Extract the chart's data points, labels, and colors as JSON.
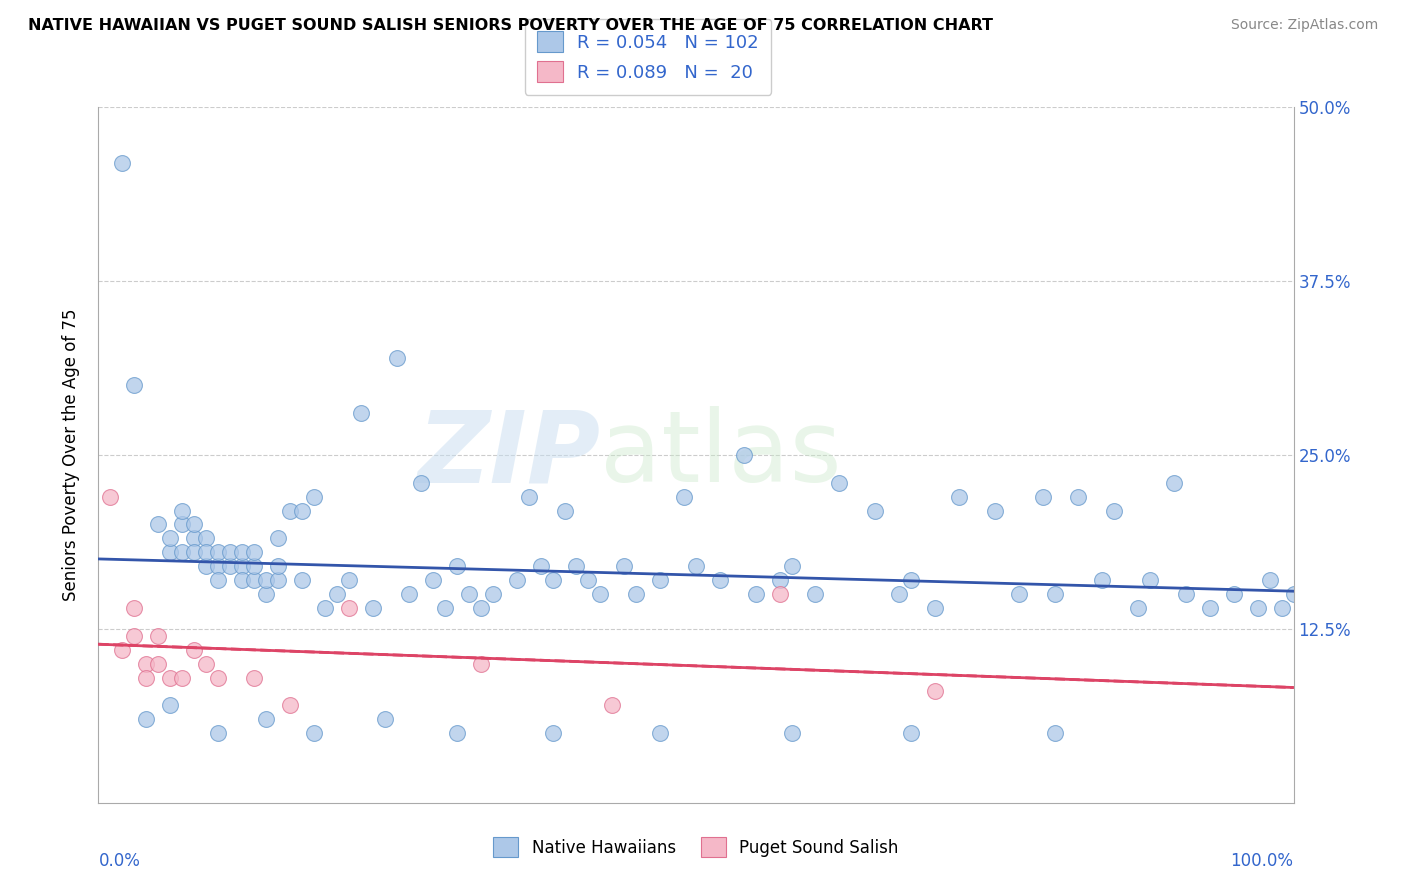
{
  "title": "NATIVE HAWAIIAN VS PUGET SOUND SALISH SENIORS POVERTY OVER THE AGE OF 75 CORRELATION CHART",
  "source": "Source: ZipAtlas.com",
  "ylabel": "Seniors Poverty Over the Age of 75",
  "ytick_vals": [
    0.0,
    0.125,
    0.25,
    0.375,
    0.5
  ],
  "ytick_labels": [
    "",
    "12.5%",
    "25.0%",
    "37.5%",
    "50.0%"
  ],
  "xtick_labels": [
    "0.0%",
    "100.0%"
  ],
  "series1_color": "#adc8e8",
  "series1_edge": "#6699cc",
  "series2_color": "#f5b8c8",
  "series2_edge": "#e07090",
  "line1_color": "#3355aa",
  "line2_color": "#dd4466",
  "tick_color": "#3366cc",
  "watermark_zip": "ZIP",
  "watermark_atlas": "atlas",
  "legend_r1": "R = 0.054",
  "legend_n1": "N = 102",
  "legend_r2": "R = 0.089",
  "legend_n2": "N =  20",
  "series1_label": "Native Hawaiians",
  "series2_label": "Puget Sound Salish",
  "nh_x": [
    0.02,
    0.03,
    0.05,
    0.06,
    0.06,
    0.07,
    0.07,
    0.07,
    0.08,
    0.08,
    0.08,
    0.09,
    0.09,
    0.09,
    0.1,
    0.1,
    0.1,
    0.11,
    0.11,
    0.12,
    0.12,
    0.12,
    0.13,
    0.13,
    0.13,
    0.14,
    0.14,
    0.15,
    0.15,
    0.15,
    0.16,
    0.17,
    0.17,
    0.18,
    0.19,
    0.2,
    0.21,
    0.22,
    0.23,
    0.25,
    0.26,
    0.27,
    0.28,
    0.29,
    0.3,
    0.31,
    0.32,
    0.33,
    0.35,
    0.36,
    0.37,
    0.38,
    0.39,
    0.4,
    0.41,
    0.42,
    0.44,
    0.45,
    0.47,
    0.49,
    0.5,
    0.52,
    0.54,
    0.55,
    0.57,
    0.58,
    0.6,
    0.62,
    0.65,
    0.67,
    0.68,
    0.7,
    0.72,
    0.75,
    0.77,
    0.79,
    0.8,
    0.82,
    0.84,
    0.85,
    0.87,
    0.88,
    0.9,
    0.91,
    0.93,
    0.95,
    0.97,
    0.98,
    0.99,
    1.0,
    0.04,
    0.06,
    0.1,
    0.14,
    0.18,
    0.24,
    0.3,
    0.38,
    0.47,
    0.58,
    0.68,
    0.8
  ],
  "nh_y": [
    0.46,
    0.3,
    0.2,
    0.18,
    0.19,
    0.18,
    0.2,
    0.21,
    0.19,
    0.18,
    0.2,
    0.17,
    0.19,
    0.18,
    0.17,
    0.18,
    0.16,
    0.17,
    0.18,
    0.17,
    0.18,
    0.16,
    0.16,
    0.17,
    0.18,
    0.15,
    0.16,
    0.16,
    0.17,
    0.19,
    0.21,
    0.16,
    0.21,
    0.22,
    0.14,
    0.15,
    0.16,
    0.28,
    0.14,
    0.32,
    0.15,
    0.23,
    0.16,
    0.14,
    0.17,
    0.15,
    0.14,
    0.15,
    0.16,
    0.22,
    0.17,
    0.16,
    0.21,
    0.17,
    0.16,
    0.15,
    0.17,
    0.15,
    0.16,
    0.22,
    0.17,
    0.16,
    0.25,
    0.15,
    0.16,
    0.17,
    0.15,
    0.23,
    0.21,
    0.15,
    0.16,
    0.14,
    0.22,
    0.21,
    0.15,
    0.22,
    0.15,
    0.22,
    0.16,
    0.21,
    0.14,
    0.16,
    0.23,
    0.15,
    0.14,
    0.15,
    0.14,
    0.16,
    0.14,
    0.15,
    0.06,
    0.07,
    0.05,
    0.06,
    0.05,
    0.06,
    0.05,
    0.05,
    0.05,
    0.05,
    0.05,
    0.05
  ],
  "ps_x": [
    0.01,
    0.02,
    0.03,
    0.03,
    0.04,
    0.04,
    0.05,
    0.05,
    0.06,
    0.07,
    0.08,
    0.09,
    0.1,
    0.13,
    0.16,
    0.21,
    0.32,
    0.43,
    0.57,
    0.7
  ],
  "ps_y": [
    0.22,
    0.11,
    0.12,
    0.14,
    0.1,
    0.09,
    0.12,
    0.1,
    0.09,
    0.09,
    0.11,
    0.1,
    0.09,
    0.09,
    0.07,
    0.14,
    0.1,
    0.07,
    0.15,
    0.08
  ]
}
